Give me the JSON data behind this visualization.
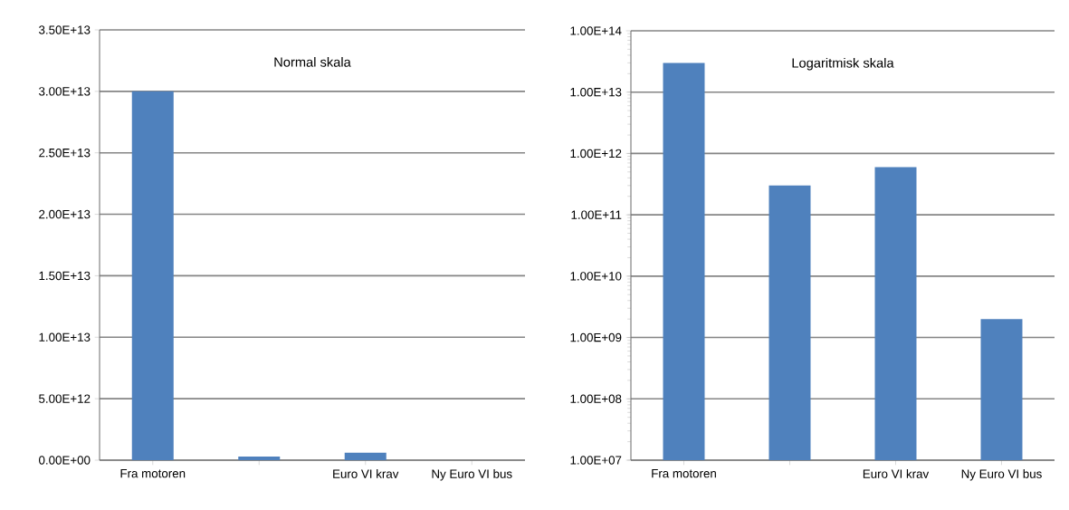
{
  "chart_data": [
    {
      "type": "bar",
      "title": "Normal skala",
      "categories": [
        "Fra motoren",
        null,
        "Euro VI krav",
        "Ny Euro VI bus"
      ],
      "values": [
        30000000000000.0,
        300000000000.0,
        600000000000.0,
        2000000000.0
      ],
      "color": "#4f81bd",
      "ylim": [
        0,
        35000000000000.0
      ],
      "grid": "y",
      "yticks": [
        {
          "value": 0,
          "label": "0.00E+00"
        },
        {
          "value": 5000000000000.0,
          "label": "5.00E+12"
        },
        {
          "value": 10000000000000.0,
          "label": "1.00E+13"
        },
        {
          "value": 15000000000000.0,
          "label": "1.50E+13"
        },
        {
          "value": 20000000000000.0,
          "label": "2.00E+13"
        },
        {
          "value": 25000000000000.0,
          "label": "2.50E+13"
        },
        {
          "value": 30000000000000.0,
          "label": "3.00E+13"
        },
        {
          "value": 35000000000000.0,
          "label": "3.50E+13"
        }
      ]
    },
    {
      "type": "bar",
      "title": "Logaritmisk skala",
      "categories": [
        "Fra motoren",
        null,
        "Euro VI krav",
        "Ny Euro VI bus"
      ],
      "values": [
        30000000000000.0,
        300000000000.0,
        600000000000.0,
        2000000000.0
      ],
      "color": "#4f81bd",
      "ylim": [
        10000000.0,
        100000000000000.0
      ],
      "grid": "y",
      "log": "y",
      "yticks": [
        {
          "value": 10000000.0,
          "label": "1.00E+07"
        },
        {
          "value": 100000000.0,
          "label": "1.00E+08"
        },
        {
          "value": 1000000000.0,
          "label": "1.00E+09"
        },
        {
          "value": 10000000000.0,
          "label": "1.00E+10"
        },
        {
          "value": 100000000000.0,
          "label": "1.00E+11"
        },
        {
          "value": 1000000000000.0,
          "label": "1.00E+12"
        },
        {
          "value": 10000000000000.0,
          "label": "1.00E+13"
        },
        {
          "value": 100000000000000.0,
          "label": "1.00E+14"
        }
      ]
    }
  ]
}
